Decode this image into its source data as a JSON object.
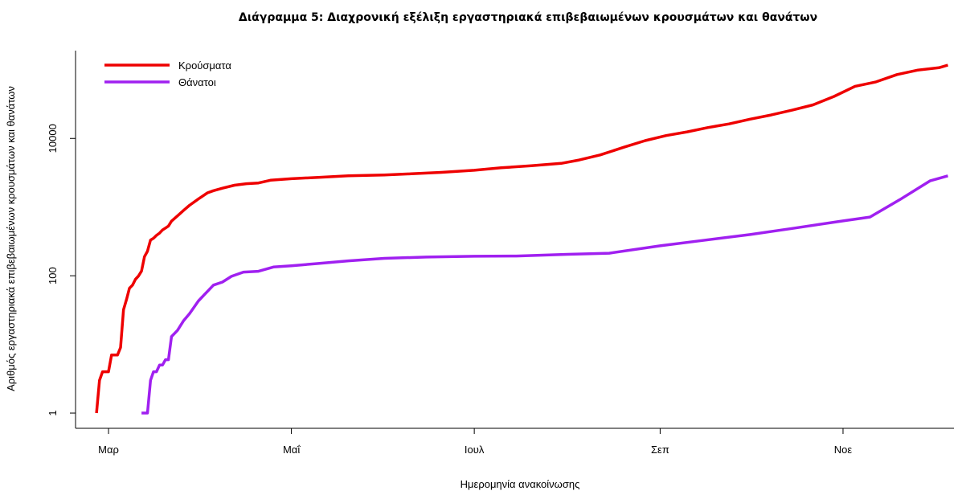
{
  "chart_data": {
    "type": "line",
    "title": "Διάγραμμα 5: Διαχρονική εξέλιξη εργαστηριακά επιβεβαιωμένων κρουσμάτων και θανάτων",
    "xlabel": "Ημερομηνία ανακοίνωσης",
    "ylabel": "Αριθμός εργαστηριακά επιβεβαιωμένων κρουσμάτων και θανάτων",
    "y_scale": "log",
    "ylim": [
      0.6,
      190000
    ],
    "xlim": [
      "2020-02-19",
      "2020-12-08"
    ],
    "x_ticks": [
      {
        "date": "2020-03-01",
        "label": "Μαρ"
      },
      {
        "date": "2020-05-01",
        "label": "Μαΐ"
      },
      {
        "date": "2020-07-01",
        "label": "Ιουλ"
      },
      {
        "date": "2020-09-01",
        "label": "Σεπ"
      },
      {
        "date": "2020-11-01",
        "label": "Νοε"
      }
    ],
    "y_ticks": [
      {
        "value": 1,
        "label": "1"
      },
      {
        "value": 100,
        "label": "100"
      },
      {
        "value": 10000,
        "label": "10000"
      }
    ],
    "legend_position": "top-left",
    "grid": false,
    "series": [
      {
        "name": "Κρούσματα",
        "color": "#ee0000",
        "points": [
          [
            "2020-02-26",
            1
          ],
          [
            "2020-02-27",
            3
          ],
          [
            "2020-02-28",
            4
          ],
          [
            "2020-03-01",
            4
          ],
          [
            "2020-03-02",
            7
          ],
          [
            "2020-03-04",
            7
          ],
          [
            "2020-03-05",
            9
          ],
          [
            "2020-03-06",
            32
          ],
          [
            "2020-03-07",
            45
          ],
          [
            "2020-03-08",
            66
          ],
          [
            "2020-03-09",
            73
          ],
          [
            "2020-03-10",
            89
          ],
          [
            "2020-03-11",
            99
          ],
          [
            "2020-03-12",
            117
          ],
          [
            "2020-03-13",
            190
          ],
          [
            "2020-03-14",
            228
          ],
          [
            "2020-03-15",
            331
          ],
          [
            "2020-03-16",
            352
          ],
          [
            "2020-03-17",
            387
          ],
          [
            "2020-03-18",
            418
          ],
          [
            "2020-03-19",
            464
          ],
          [
            "2020-03-20",
            495
          ],
          [
            "2020-03-21",
            530
          ],
          [
            "2020-03-22",
            624
          ],
          [
            "2020-03-24",
            743
          ],
          [
            "2020-03-26",
            892
          ],
          [
            "2020-03-28",
            1061
          ],
          [
            "2020-03-31",
            1314
          ],
          [
            "2020-04-03",
            1613
          ],
          [
            "2020-04-05",
            1735
          ],
          [
            "2020-04-08",
            1884
          ],
          [
            "2020-04-12",
            2081
          ],
          [
            "2020-04-16",
            2192
          ],
          [
            "2020-04-20",
            2245
          ],
          [
            "2020-04-24",
            2463
          ],
          [
            "2020-05-01",
            2591
          ],
          [
            "2020-05-10",
            2710
          ],
          [
            "2020-05-20",
            2850
          ],
          [
            "2020-06-01",
            2937
          ],
          [
            "2020-06-10",
            3049
          ],
          [
            "2020-06-20",
            3203
          ],
          [
            "2020-07-01",
            3432
          ],
          [
            "2020-07-10",
            3732
          ],
          [
            "2020-07-20",
            4012
          ],
          [
            "2020-07-30",
            4337
          ],
          [
            "2020-08-05",
            4855
          ],
          [
            "2020-08-12",
            5749
          ],
          [
            "2020-08-20",
            7472
          ],
          [
            "2020-08-27",
            9280
          ],
          [
            "2020-09-03",
            10998
          ],
          [
            "2020-09-10",
            12452
          ],
          [
            "2020-09-17",
            14400
          ],
          [
            "2020-09-24",
            16286
          ],
          [
            "2020-10-01",
            19079
          ],
          [
            "2020-10-08",
            21947
          ],
          [
            "2020-10-15",
            25802
          ],
          [
            "2020-10-22",
            30782
          ],
          [
            "2020-10-29",
            40929
          ],
          [
            "2020-11-05",
            57425
          ],
          [
            "2020-11-12",
            66637
          ],
          [
            "2020-11-19",
            85160
          ],
          [
            "2020-11-26",
            98931
          ],
          [
            "2020-12-03",
            107025
          ],
          [
            "2020-12-06",
            117000
          ]
        ]
      },
      {
        "name": "Θάνατοι",
        "color": "#a020f0",
        "points": [
          [
            "2020-03-12",
            1
          ],
          [
            "2020-03-14",
            1
          ],
          [
            "2020-03-15",
            3
          ],
          [
            "2020-03-16",
            4
          ],
          [
            "2020-03-17",
            4
          ],
          [
            "2020-03-18",
            5
          ],
          [
            "2020-03-19",
            5
          ],
          [
            "2020-03-20",
            6
          ],
          [
            "2020-03-21",
            6
          ],
          [
            "2020-03-22",
            13
          ],
          [
            "2020-03-24",
            16
          ],
          [
            "2020-03-26",
            22
          ],
          [
            "2020-03-28",
            28
          ],
          [
            "2020-03-31",
            43
          ],
          [
            "2020-04-03",
            59
          ],
          [
            "2020-04-05",
            73
          ],
          [
            "2020-04-08",
            81
          ],
          [
            "2020-04-11",
            98
          ],
          [
            "2020-04-15",
            113
          ],
          [
            "2020-04-20",
            116
          ],
          [
            "2020-04-25",
            134
          ],
          [
            "2020-05-01",
            140
          ],
          [
            "2020-05-10",
            151
          ],
          [
            "2020-05-20",
            165
          ],
          [
            "2020-06-01",
            179
          ],
          [
            "2020-06-15",
            187
          ],
          [
            "2020-07-01",
            192
          ],
          [
            "2020-07-15",
            194
          ],
          [
            "2020-08-01",
            205
          ],
          [
            "2020-08-15",
            213
          ],
          [
            "2020-09-01",
            273
          ],
          [
            "2020-09-15",
            326
          ],
          [
            "2020-10-01",
            398
          ],
          [
            "2020-10-15",
            488
          ],
          [
            "2020-11-01",
            629
          ],
          [
            "2020-11-10",
            717
          ],
          [
            "2020-11-20",
            1288
          ],
          [
            "2020-11-30",
            2406
          ],
          [
            "2020-12-06",
            2854
          ]
        ]
      }
    ]
  }
}
